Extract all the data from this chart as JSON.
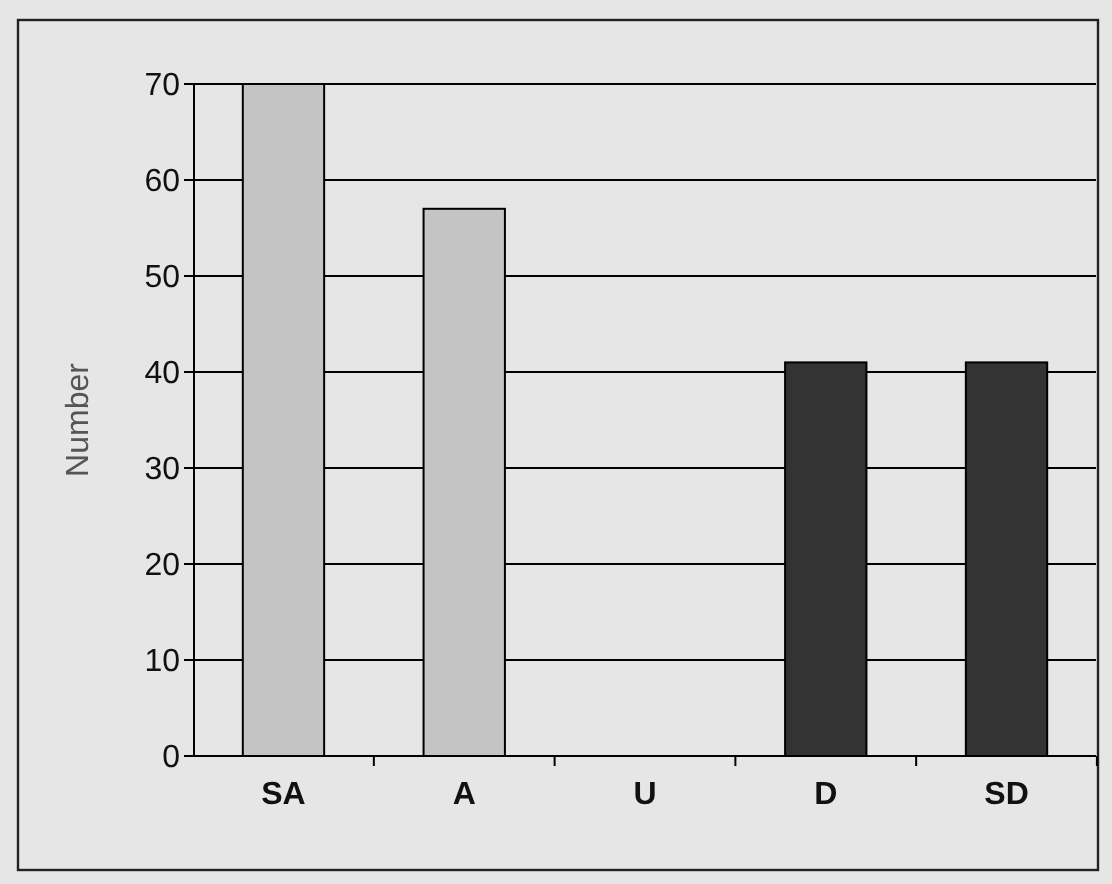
{
  "chart_data": {
    "type": "bar",
    "ylabel": "Number",
    "categories": [
      "SA",
      "A",
      "U",
      "D",
      "SD"
    ],
    "values": [
      70,
      57,
      0,
      41,
      41
    ],
    "colors": [
      "#c4c4c4",
      "#c4c4c4",
      "#c4c4c4",
      "#333333",
      "#333333"
    ],
    "ylim": [
      0,
      70
    ],
    "yticks": [
      0,
      10,
      20,
      30,
      40,
      50,
      60,
      70
    ],
    "grid": "y"
  }
}
